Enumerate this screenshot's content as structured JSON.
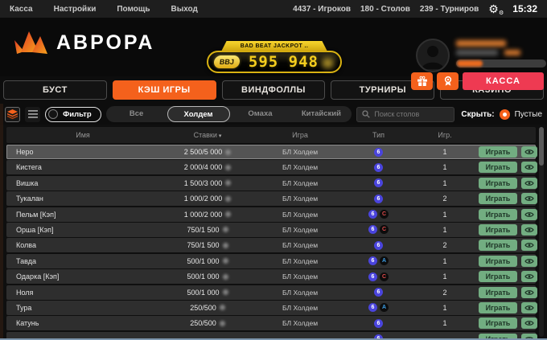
{
  "menubar": {
    "menu_items": [
      "Касса",
      "Настройки",
      "Помощь",
      "Выход"
    ],
    "stats": [
      {
        "value": "4437",
        "label": "Игроков"
      },
      {
        "value": "180",
        "label": "Столов"
      },
      {
        "value": "239",
        "label": "Турниров"
      }
    ],
    "time": "15:32"
  },
  "header": {
    "logo_text": "АВРОРА",
    "jackpot": {
      "title": "BAD BEAT JACKPOT ..",
      "badge": "BBJ",
      "value": "595 948"
    },
    "cashier_label": "КАССА"
  },
  "nav_tabs": [
    {
      "label": "БУСТ",
      "active": false
    },
    {
      "label": "КЭШ ИГРЫ",
      "active": true
    },
    {
      "label": "ВИНДФОЛЛЫ",
      "active": false
    },
    {
      "label": "ТУРНИРЫ",
      "active": false
    },
    {
      "label": "КАЗИНО",
      "active": false
    }
  ],
  "filter_bar": {
    "filter_toggle_label": "Фильтр",
    "game_filters": [
      {
        "label": "Все",
        "active": false
      },
      {
        "label": "Холдем",
        "active": true
      },
      {
        "label": "Омаха",
        "active": false
      },
      {
        "label": "Китайский",
        "active": false
      }
    ],
    "search_placeholder": "Поиск столов",
    "hide_label": "Скрыть:",
    "hide_option": {
      "label": "Пустые",
      "checked": true
    }
  },
  "table": {
    "columns": [
      "Имя",
      "Ставки",
      "Игра",
      "Тип",
      "Игр."
    ],
    "sorted_by": "Ставки",
    "sort_direction": "desc",
    "play_button_label": "Играть",
    "rows": [
      {
        "name": "Неро",
        "stakes": "2 500/5 000",
        "game": "БЛ Холдем",
        "badges": [
          "6"
        ],
        "players": "1",
        "selected": true
      },
      {
        "name": "Кистега",
        "stakes": "2 000/4 000",
        "game": "БЛ Холдем",
        "badges": [
          "6"
        ],
        "players": "1"
      },
      {
        "name": "Вишка",
        "stakes": "1 500/3 000",
        "game": "БЛ Холдем",
        "badges": [
          "6"
        ],
        "players": "1"
      },
      {
        "name": "Тукалан",
        "stakes": "1 000/2 000",
        "game": "БЛ Холдем",
        "badges": [
          "6"
        ],
        "players": "2"
      },
      {
        "name": "Пельм [Кэп]",
        "stakes": "1 000/2 000",
        "game": "БЛ Холдем",
        "badges": [
          "6",
          "C"
        ],
        "players": "1"
      },
      {
        "name": "Орша [Кэп]",
        "stakes": "750/1 500",
        "game": "БЛ Холдем",
        "badges": [
          "6",
          "C"
        ],
        "players": "1"
      },
      {
        "name": "Колва",
        "stakes": "750/1 500",
        "game": "БЛ Холдем",
        "badges": [
          "6"
        ],
        "players": "2"
      },
      {
        "name": "Тавда",
        "stakes": "500/1 000",
        "game": "БЛ Холдем",
        "badges": [
          "6",
          "A"
        ],
        "players": "1"
      },
      {
        "name": "Одарка [Кэп]",
        "stakes": "500/1 000",
        "game": "БЛ Холдем",
        "badges": [
          "6",
          "C"
        ],
        "players": "1"
      },
      {
        "name": "Ноля",
        "stakes": "500/1 000",
        "game": "БЛ Холдем",
        "badges": [
          "6"
        ],
        "players": "2"
      },
      {
        "name": "Тура",
        "stakes": "250/500",
        "game": "БЛ Холдем",
        "badges": [
          "6",
          "A"
        ],
        "players": "1"
      },
      {
        "name": "Катунь",
        "stakes": "250/500",
        "game": "БЛ Холдем",
        "badges": [
          "6"
        ],
        "players": "1"
      },
      {
        "name": "",
        "stakes": "",
        "game": "",
        "badges": [
          "6"
        ],
        "players": "",
        "partial": true
      }
    ]
  },
  "colors": {
    "accent_orange": "#f4611c",
    "cashier_red": "#ee3a52",
    "play_green": "#72ad81",
    "badge_indigo": "#4a44dd",
    "badge_red": "#e14b4b",
    "badge_blue": "#3da0e8",
    "jackpot_yellow": "#f5cd1e"
  }
}
